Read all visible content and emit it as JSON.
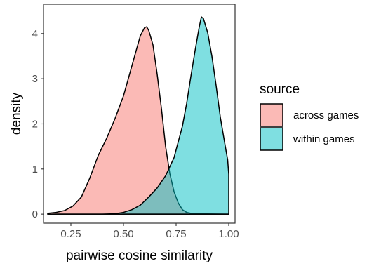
{
  "chart_data": {
    "type": "area",
    "chart_kind": "density",
    "xlabel": "pairwise cosine similarity",
    "ylabel": "density",
    "xlim": [
      0.12,
      1.03
    ],
    "ylim": [
      -0.2,
      4.65
    ],
    "x_ticks": [
      0.25,
      0.5,
      0.75,
      1.0
    ],
    "x_tick_labels": [
      "0.25",
      "0.50",
      "0.75",
      "1.00"
    ],
    "y_ticks": [
      0,
      1,
      2,
      3,
      4
    ],
    "y_tick_labels": [
      "0",
      "1",
      "2",
      "3",
      "4"
    ],
    "grid": false,
    "legend": {
      "title": "source",
      "position": "right"
    },
    "series": [
      {
        "name": "across games",
        "fill": "#F8766D",
        "fill_opacity": 0.5,
        "points": [
          [
            0.14,
            0.02
          ],
          [
            0.18,
            0.04
          ],
          [
            0.22,
            0.08
          ],
          [
            0.26,
            0.18
          ],
          [
            0.3,
            0.38
          ],
          [
            0.34,
            0.8
          ],
          [
            0.38,
            1.3
          ],
          [
            0.42,
            1.68
          ],
          [
            0.46,
            2.12
          ],
          [
            0.5,
            2.62
          ],
          [
            0.53,
            3.12
          ],
          [
            0.56,
            3.62
          ],
          [
            0.58,
            3.95
          ],
          [
            0.6,
            4.13
          ],
          [
            0.61,
            4.15
          ],
          [
            0.62,
            4.07
          ],
          [
            0.64,
            3.75
          ],
          [
            0.66,
            3.1
          ],
          [
            0.68,
            2.35
          ],
          [
            0.7,
            1.5
          ],
          [
            0.72,
            0.9
          ],
          [
            0.74,
            0.5
          ],
          [
            0.76,
            0.25
          ],
          [
            0.78,
            0.1
          ],
          [
            0.8,
            0.04
          ],
          [
            0.83,
            0.01
          ],
          [
            1.0,
            0.0
          ]
        ]
      },
      {
        "name": "within games",
        "fill": "#00BFC4",
        "fill_opacity": 0.5,
        "points": [
          [
            0.14,
            0.0
          ],
          [
            0.4,
            0.0
          ],
          [
            0.46,
            0.01
          ],
          [
            0.5,
            0.04
          ],
          [
            0.54,
            0.1
          ],
          [
            0.58,
            0.2
          ],
          [
            0.62,
            0.38
          ],
          [
            0.66,
            0.58
          ],
          [
            0.7,
            0.85
          ],
          [
            0.74,
            1.25
          ],
          [
            0.78,
            1.95
          ],
          [
            0.8,
            2.45
          ],
          [
            0.82,
            3.05
          ],
          [
            0.84,
            3.62
          ],
          [
            0.86,
            4.15
          ],
          [
            0.87,
            4.37
          ],
          [
            0.88,
            4.33
          ],
          [
            0.9,
            4.02
          ],
          [
            0.92,
            3.5
          ],
          [
            0.94,
            2.85
          ],
          [
            0.96,
            2.15
          ],
          [
            0.98,
            1.6
          ],
          [
            0.995,
            1.2
          ],
          [
            1.0,
            0.88
          ]
        ]
      }
    ]
  }
}
